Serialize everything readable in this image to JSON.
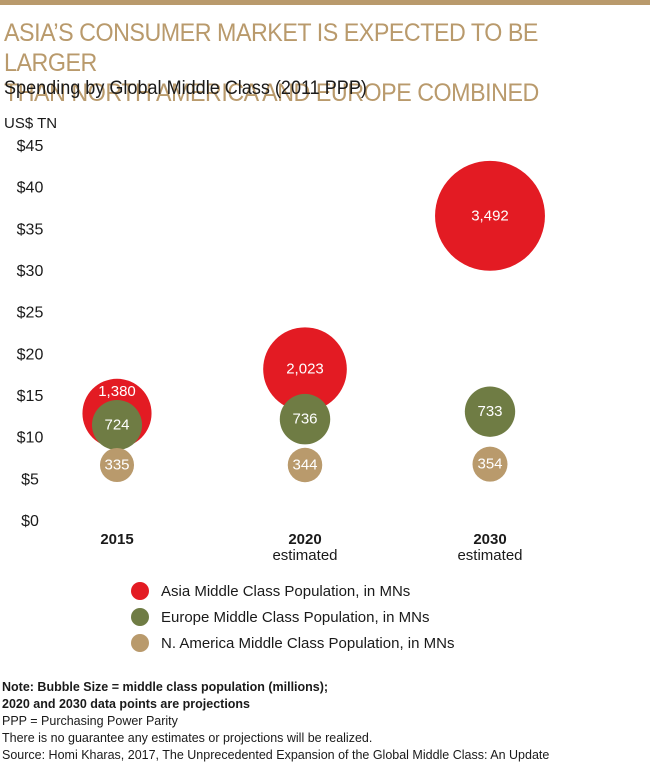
{
  "header": {
    "headline_line1": "ASIA’S CONSUMER MARKET IS EXPECTED TO BE LARGER",
    "headline_line2": "THAN NORTH AMERICA AND EUROPE COMBINED",
    "subtitle": "Spending by Global Middle Class (2011 PPP)",
    "unit": "US$ TN"
  },
  "colors": {
    "accent": "#b99a6c",
    "asia": "#e31b23",
    "europe": "#6f7c44",
    "namerica": "#b99a6c"
  },
  "chart_data": {
    "type": "scatter",
    "subtype": "bubble",
    "title": "Spending by Global Middle Class (2011 PPP)",
    "ylabel": "US$ TN",
    "ylim": [
      0,
      45
    ],
    "yticks": [
      0,
      5,
      10,
      15,
      20,
      25,
      30,
      35,
      40,
      45
    ],
    "ytick_labels": [
      "$0",
      "$5",
      "$10",
      "$15",
      "$20",
      "$25",
      "$30",
      "$35",
      "$40",
      "$45"
    ],
    "categories": [
      "2015",
      "2020",
      "2030"
    ],
    "category_sublabels": [
      "",
      "estimated",
      "estimated"
    ],
    "grid": false,
    "legend_placement": "bottom",
    "size_note": "Bubble Size = middle class population (millions)",
    "series": [
      {
        "name": "Asia Middle Class Population, in MNs",
        "color_key": "asia",
        "spending": [
          12.8,
          18.1,
          36.5
        ],
        "population": [
          1380,
          2023,
          3492
        ],
        "labels": [
          "1,380",
          "2,023",
          "3,492"
        ]
      },
      {
        "name": "Europe Middle Class Population, in MNs",
        "color_key": "europe",
        "spending": [
          11.4,
          12.1,
          13.0
        ],
        "population": [
          724,
          736,
          733
        ],
        "labels": [
          "724",
          "736",
          "733"
        ]
      },
      {
        "name": "N. America Middle Class Population, in MNs",
        "color_key": "namerica",
        "spending": [
          6.6,
          6.6,
          6.7
        ],
        "population": [
          335,
          344,
          354
        ],
        "labels": [
          "335",
          "344",
          "354"
        ]
      }
    ]
  },
  "notes": {
    "line1": "Note: Bubble Size = middle class population (millions);",
    "line2": "2020 and 2030 data points are projections",
    "line3": "PPP = Purchasing Power Parity",
    "line4": "There is no guarantee any estimates or projections will be realized.",
    "line5": "Source: Homi Kharas, 2017, The Unprecedented Expansion of the Global Middle Class: An Update"
  }
}
